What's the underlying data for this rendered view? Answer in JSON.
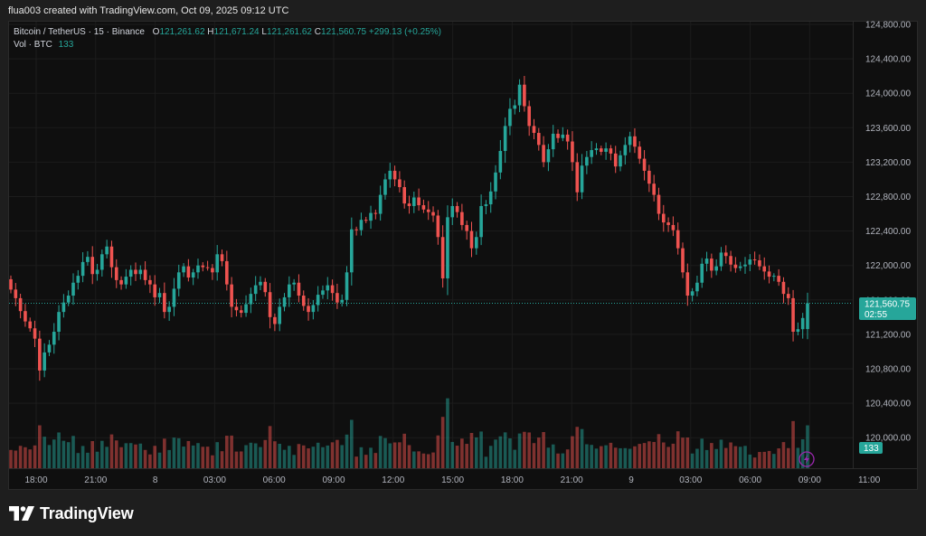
{
  "header": {
    "credit": "flua003 created with TradingView.com, Oct 09, 2025 09:12 UTC"
  },
  "legend": {
    "symbol": "Bitcoin / TetherUS · 15 · Binance",
    "open_label": "O",
    "open": "121,261.62",
    "high_label": "H",
    "high": "121,671.24",
    "low_label": "L",
    "low": "121,261.62",
    "close_label": "C",
    "close": "121,560.75",
    "change": "+299.13 (+0.25%)",
    "vol_label": "Vol · BTC",
    "vol": "133"
  },
  "price_badge": {
    "price": "121,560.75",
    "countdown": "02:55",
    "color": "#26a69a"
  },
  "volume_badge": {
    "value": "133"
  },
  "icons": {
    "lightning": "lightning-icon",
    "logo": "tradingview-logo-icon"
  },
  "brand": {
    "name": "TradingView"
  },
  "colors": {
    "up": "#26a69a",
    "down": "#ef5350",
    "background": "#0f0f0f",
    "grid": "#1c1c1c"
  },
  "chart_data": {
    "type": "candlestick",
    "price_axis": {
      "ticks": [
        "124,800.00",
        "124,400.00",
        "124,000.00",
        "123,600.00",
        "123,200.00",
        "122,800.00",
        "122,400.00",
        "122,000.00",
        "121,600.00",
        "121,200.00",
        "120,800.00",
        "120,400.00",
        "120,000.00"
      ],
      "range": [
        119600,
        124800
      ]
    },
    "time_axis": {
      "labels": [
        "18:00",
        "21:00",
        "8",
        "03:00",
        "06:00",
        "09:00",
        "12:00",
        "15:00",
        "18:00",
        "21:00",
        "9",
        "03:00",
        "06:00",
        "09:00",
        "11:00"
      ]
    },
    "last_price": 121560.75,
    "grid": true,
    "closes": [
      121720,
      121620,
      121470,
      121350,
      121270,
      121150,
      120780,
      120990,
      121080,
      121230,
      121460,
      121570,
      121650,
      121800,
      121880,
      122040,
      122100,
      121900,
      121950,
      122130,
      122220,
      121980,
      121830,
      121780,
      121870,
      121950,
      121900,
      121950,
      121830,
      121780,
      121630,
      121680,
      121460,
      121520,
      121730,
      121920,
      121990,
      121860,
      121920,
      122000,
      121980,
      121970,
      121920,
      122130,
      122050,
      121780,
      121520,
      121480,
      121450,
      121550,
      121670,
      121770,
      121810,
      121690,
      121400,
      121320,
      121520,
      121630,
      121780,
      121800,
      121650,
      121530,
      121460,
      121540,
      121660,
      121710,
      121770,
      121680,
      121570,
      121600,
      121920,
      122420,
      122410,
      122530,
      122520,
      122610,
      122600,
      122820,
      123000,
      123100,
      123000,
      122910,
      122720,
      122690,
      122790,
      122700,
      122650,
      122620,
      122580,
      122330,
      121850,
      122560,
      122690,
      122620,
      122470,
      122400,
      122200,
      122330,
      122690,
      122710,
      122860,
      123080,
      123330,
      123620,
      123820,
      123860,
      124100,
      123850,
      123620,
      123540,
      123400,
      123200,
      123350,
      123530,
      123480,
      123520,
      123440,
      123200,
      122850,
      123160,
      123260,
      123340,
      123360,
      123320,
      123360,
      123300,
      123150,
      123280,
      123400,
      123500,
      123380,
      123240,
      123100,
      122950,
      122820,
      122600,
      122500,
      122470,
      122410,
      122200,
      121920,
      121650,
      121700,
      121800,
      122020,
      122080,
      121940,
      121990,
      122150,
      122110,
      122010,
      121970,
      121990,
      122010,
      122070,
      122060,
      121990,
      121930,
      121870,
      121880,
      121810,
      121670,
      121620,
      121230,
      121260,
      121390,
      121561
    ]
  }
}
